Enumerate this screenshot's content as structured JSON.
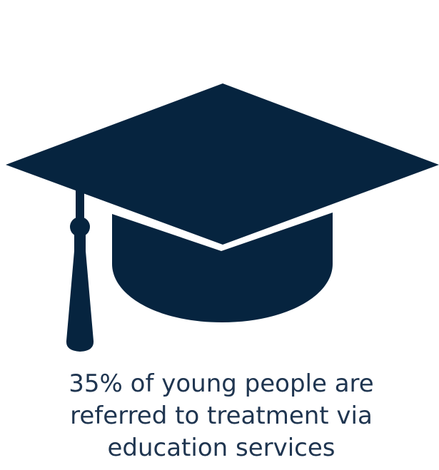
{
  "graphic": {
    "icon": "graduation-cap-icon",
    "color": "#06243f"
  },
  "caption": {
    "text": "35% of young people are referred to treatment via education services",
    "color": "#1f3550"
  }
}
